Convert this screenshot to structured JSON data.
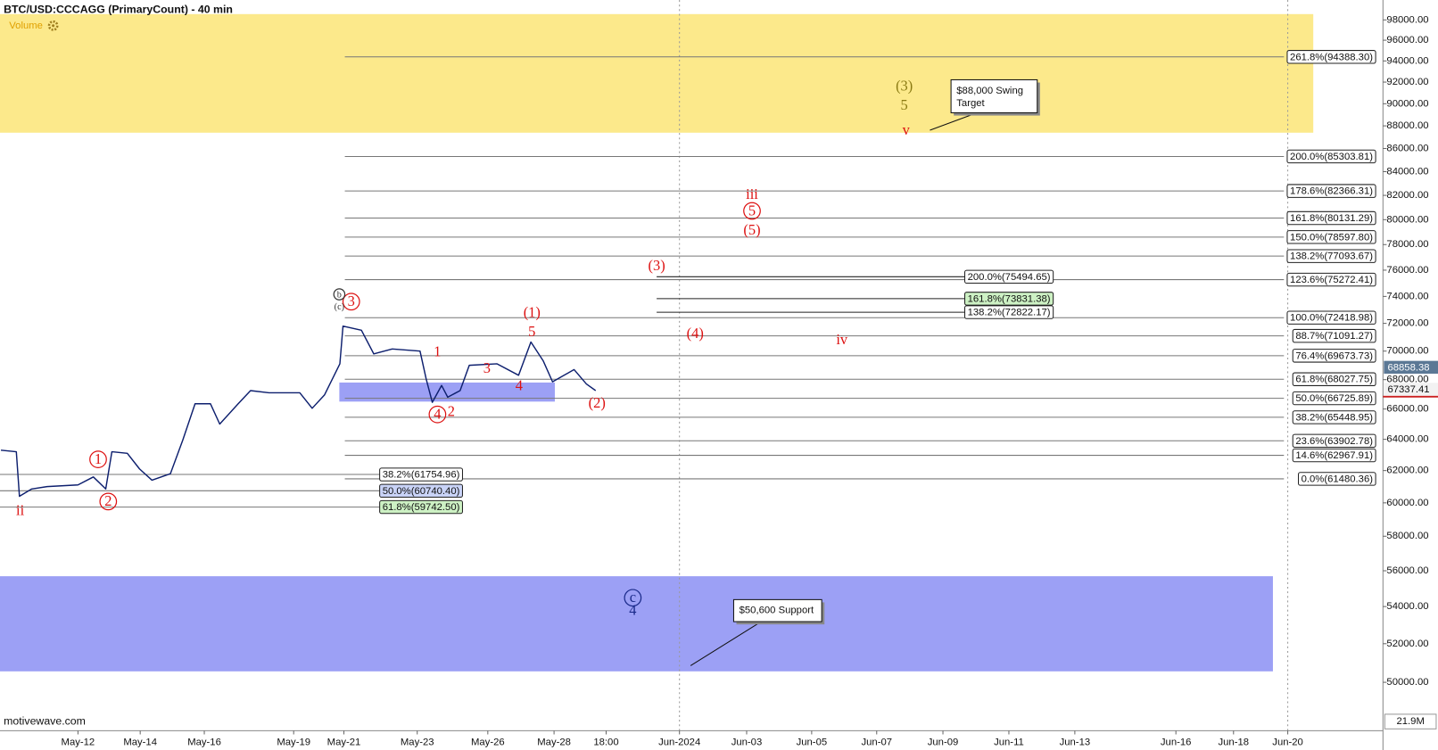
{
  "chart_data": {
    "type": "line",
    "title": "BTC/USD:CCCAGG (PrimaryCount) - 40 min",
    "volume_label": "Volume",
    "watermark": "motivewave.com",
    "volume_axis_label": "21.9M",
    "log_scale": true,
    "xlim": [
      -1.53,
      43.35
    ],
    "xticks": [
      {
        "value": 1.0,
        "label": "May-12"
      },
      {
        "value": 3.02,
        "label": "May-14"
      },
      {
        "value": 5.1,
        "label": "May-16"
      },
      {
        "value": 8.0,
        "label": "May-19"
      },
      {
        "value": 9.63,
        "label": "May-21"
      },
      {
        "value": 12.01,
        "label": "May-23"
      },
      {
        "value": 14.3,
        "label": "May-26"
      },
      {
        "value": 16.45,
        "label": "May-28"
      },
      {
        "value": 18.14,
        "label": "18:00"
      },
      {
        "value": 20.52,
        "label": "Jun-2024"
      },
      {
        "value": 22.7,
        "label": "Jun-03"
      },
      {
        "value": 24.81,
        "label": "Jun-05"
      },
      {
        "value": 26.92,
        "label": "Jun-07"
      },
      {
        "value": 29.07,
        "label": "Jun-09"
      },
      {
        "value": 31.21,
        "label": "Jun-11"
      },
      {
        "value": 33.35,
        "label": "Jun-13"
      },
      {
        "value": 36.63,
        "label": "Jun-16"
      },
      {
        "value": 38.5,
        "label": "Jun-18"
      },
      {
        "value": 40.26,
        "label": "Jun-20"
      }
    ],
    "ylim": [
      47600,
      100000
    ],
    "yticks": [
      {
        "value": 50000,
        "label": "50000.00"
      },
      {
        "value": 52000,
        "label": "52000.00"
      },
      {
        "value": 54000,
        "label": "54000.00"
      },
      {
        "value": 56000,
        "label": "56000.00"
      },
      {
        "value": 58000,
        "label": "58000.00"
      },
      {
        "value": 60000,
        "label": "60000.00"
      },
      {
        "value": 62000,
        "label": "62000.00"
      },
      {
        "value": 64000,
        "label": "64000.00"
      },
      {
        "value": 66000,
        "label": "66000.00"
      },
      {
        "value": 68000,
        "label": "68000.00"
      },
      {
        "value": 70000,
        "label": "70000.00"
      },
      {
        "value": 72000,
        "label": "72000.00"
      },
      {
        "value": 74000,
        "label": "74000.00"
      },
      {
        "value": 76000,
        "label": "76000.00"
      },
      {
        "value": 78000,
        "label": "78000.00"
      },
      {
        "value": 80000,
        "label": "80000.00"
      },
      {
        "value": 82000,
        "label": "82000.00"
      },
      {
        "value": 84000,
        "label": "84000.00"
      },
      {
        "value": 86000,
        "label": "86000.00"
      },
      {
        "value": 88000,
        "label": "88000.00"
      },
      {
        "value": 90000,
        "label": "90000.00"
      },
      {
        "value": 92000,
        "label": "92000.00"
      },
      {
        "value": 94000,
        "label": "94000.00"
      },
      {
        "value": 96000,
        "label": "96000.00"
      },
      {
        "value": 98000,
        "label": "98000.00"
      }
    ],
    "x": [
      -1.5,
      -1.0,
      -0.9,
      -0.5,
      0,
      1.0,
      1.5,
      1.9,
      2.1,
      2.6,
      3.0,
      3.4,
      4.0,
      4.4,
      4.8,
      5.3,
      5.6,
      6.2,
      6.6,
      7.2,
      8.2,
      8.6,
      9.0,
      9.5,
      9.6,
      10.2,
      10.6,
      11.2,
      12.1,
      12.3,
      12.5,
      12.8,
      13.0,
      13.4,
      13.7,
      14.6,
      15.3,
      15.7,
      16.1,
      16.4,
      17.1,
      17.5,
      17.8
    ],
    "series": [
      {
        "color": "#0d1f6e",
        "values": [
          63300,
          63200,
          60400,
          60850,
          61000,
          61100,
          61600,
          60850,
          63200,
          63100,
          62100,
          61400,
          61800,
          63950,
          66350,
          66350,
          65000,
          66350,
          67250,
          67100,
          67100,
          66050,
          66950,
          69100,
          71800,
          71500,
          69800,
          70150,
          70000,
          68050,
          66450,
          67600,
          66800,
          67250,
          69000,
          69100,
          68300,
          70650,
          69300,
          67850,
          68700,
          67700,
          67250
        ]
      }
    ],
    "zones": [
      {
        "range": [
          87390,
          98580
        ],
        "color": "#fce98b"
      },
      {
        "range": [
          50560,
          55690
        ],
        "color": "#979bf4"
      },
      {
        "range": [
          66500,
          67800
        ],
        "color": "#979bf4"
      }
    ],
    "fib_sets": [
      {
        "levels": [
          {
            "value": 94388.3,
            "label": "261.8%(94388.30)"
          },
          {
            "value": 85303.81,
            "label": "200.0%(85303.81)"
          },
          {
            "value": 82366.31,
            "label": "178.6%(82366.31)"
          },
          {
            "value": 80131.29,
            "label": "161.8%(80131.29)"
          },
          {
            "value": 78597.8,
            "label": "150.0%(78597.80)"
          },
          {
            "value": 77093.67,
            "label": "138.2%(77093.67)"
          },
          {
            "value": 75272.41,
            "label": "123.6%(75272.41)"
          },
          {
            "value": 72418.98,
            "label": "100.0%(72418.98)"
          },
          {
            "value": 71091.27,
            "label": "88.7%(71091.27)"
          },
          {
            "value": 69673.73,
            "label": "76.4%(69673.73)"
          },
          {
            "value": 68027.75,
            "label": "61.8%(68027.75)"
          },
          {
            "value": 66725.89,
            "label": "50.0%(66725.89)"
          },
          {
            "value": 65448.95,
            "label": "38.2%(65448.95)"
          },
          {
            "value": 63902.78,
            "label": "23.6%(63902.78)"
          },
          {
            "value": 62967.91,
            "label": "14.6%(62967.91)"
          },
          {
            "value": 61480.36,
            "label": "0.0%(61480.36)"
          }
        ]
      },
      {
        "levels": [
          {
            "value": 61754.96,
            "label": "38.2%(61754.96)"
          },
          {
            "value": 60740.4,
            "label": "50.0%(60740.40)",
            "fill": "#c9d3f7"
          },
          {
            "value": 59742.5,
            "label": "61.8%(59742.50)",
            "fill": "#cdf1c4"
          }
        ]
      },
      {
        "levels": [
          {
            "value": 75494.65,
            "label": "200.0%(75494.65)"
          },
          {
            "value": 73831.38,
            "label": "161.8%(73831.38)",
            "fill": "#cdf1c4"
          },
          {
            "value": 72822.17,
            "label": "138.2%(72822.17)"
          }
        ]
      }
    ],
    "price_tags": [
      {
        "value": 68858.38,
        "color": "#5b7895",
        "text_color": "#ffffff"
      },
      {
        "value": 67337.41,
        "color": "#f2f2f2",
        "text_color": "#111111",
        "line": "#cc2222"
      }
    ],
    "callouts": [
      {
        "lines": [
          "$88,000 Swing",
          "Target"
        ]
      },
      {
        "lines": [
          "$50,600 Support"
        ]
      }
    ],
    "annotations": [
      {
        "text": "(3)",
        "color": "#8a7a12"
      },
      {
        "text": "5",
        "color": "#8a7a12"
      },
      {
        "text": "v",
        "color": "#dd1111"
      },
      {
        "text": "iii",
        "color": "#dd1111"
      },
      {
        "text": "5",
        "color": "#dd1111",
        "circle": true
      },
      {
        "text": "(5)",
        "color": "#dd1111"
      },
      {
        "text": "(3)",
        "color": "#dd1111"
      },
      {
        "text": "(4)",
        "color": "#dd1111"
      },
      {
        "text": "iv",
        "color": "#dd1111"
      },
      {
        "text": "(1)",
        "color": "#dd1111"
      },
      {
        "text": "5",
        "color": "#dd1111"
      },
      {
        "text": "3",
        "color": "#dd1111"
      },
      {
        "text": "1",
        "color": "#dd1111"
      },
      {
        "text": "4",
        "color": "#dd1111"
      },
      {
        "text": "4",
        "color": "#dd1111",
        "circle": true
      },
      {
        "text": "2",
        "color": "#dd1111"
      },
      {
        "text": "(2)",
        "color": "#dd1111"
      },
      {
        "text": "3",
        "color": "#dd1111",
        "circle": true
      },
      {
        "text": "b",
        "color": "#333333",
        "circle": true
      },
      {
        "text": "(c)",
        "color": "#333333"
      },
      {
        "text": "1",
        "color": "#dd1111",
        "circle": true
      },
      {
        "text": "2",
        "color": "#dd1111",
        "circle": true
      },
      {
        "text": "ii",
        "color": "#dd1111"
      },
      {
        "text": "c",
        "color": "#1a2a8a",
        "circle": true
      },
      {
        "text": "4",
        "color": "#1a2a8a"
      }
    ]
  }
}
